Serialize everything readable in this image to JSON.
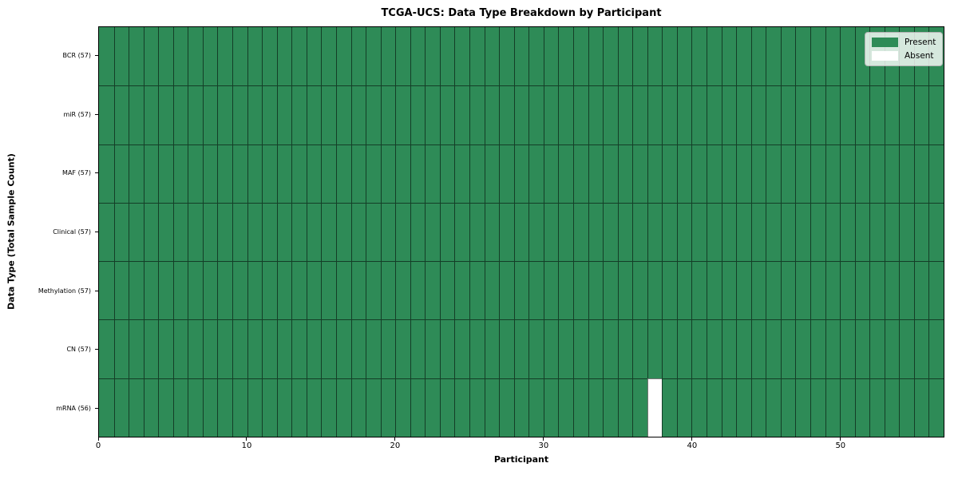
{
  "figure": {
    "title": "TCGA-UCS: Data Type Breakdown by Participant"
  },
  "chart_data": {
    "type": "heatmap",
    "title": "TCGA-UCS: Data Type Breakdown by Participant",
    "xlabel": "Participant",
    "ylabel": "Data Type (Total Sample Count)",
    "n_participants": 57,
    "x_ticks": [
      0,
      10,
      20,
      30,
      40,
      50
    ],
    "x_range": [
      0,
      57
    ],
    "grid": true,
    "rows": [
      {
        "label": "BCR (57)",
        "present_count": 57,
        "absent_participants": []
      },
      {
        "label": "miR (57)",
        "present_count": 57,
        "absent_participants": []
      },
      {
        "label": "MAF (57)",
        "present_count": 57,
        "absent_participants": []
      },
      {
        "label": "Clinical (57)",
        "present_count": 57,
        "absent_participants": []
      },
      {
        "label": "Methylation (57)",
        "present_count": 57,
        "absent_participants": []
      },
      {
        "label": "CN (57)",
        "present_count": 57,
        "absent_participants": []
      },
      {
        "label": "mRNA (56)",
        "present_count": 56,
        "absent_participants": [
          37
        ]
      }
    ],
    "legend": {
      "position": "upper right",
      "entries": [
        {
          "label": "Present",
          "color": "#2e8b57"
        },
        {
          "label": "Absent",
          "color": "#ffffff"
        }
      ]
    },
    "colors": {
      "present": "#2e8b57",
      "absent": "#ffffff",
      "cell_edge": "rgba(0,0,0,0.55)",
      "axes_edge": "#000000"
    }
  }
}
